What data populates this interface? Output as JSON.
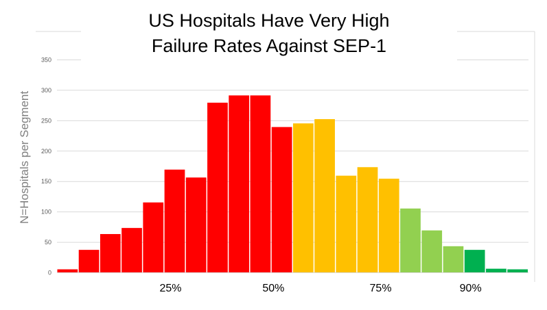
{
  "chart_data": {
    "type": "bar",
    "title": "US Hospitals Have Very High Failure Rates Against SEP-1",
    "title_lines": [
      "US Hospitals Have Very High",
      "Failure Rates Against SEP-1"
    ],
    "ylabel": "N=Hospitals per Segment",
    "xlabel": "",
    "ylim": [
      0,
      350
    ],
    "yticks": [
      0,
      50,
      100,
      150,
      200,
      250,
      300,
      350
    ],
    "grid": true,
    "values": [
      5,
      37,
      63,
      73,
      115,
      169,
      156,
      279,
      291,
      291,
      239,
      245,
      252,
      159,
      173,
      154,
      105,
      69,
      43,
      37,
      6,
      5
    ],
    "bar_colors": [
      "#FF0000",
      "#FF0000",
      "#FF0000",
      "#FF0000",
      "#FF0000",
      "#FF0000",
      "#FF0000",
      "#FF0000",
      "#FF0000",
      "#FF0000",
      "#FF0000",
      "#FFC000",
      "#FFC000",
      "#FFC000",
      "#FFC000",
      "#FFC000",
      "#92D050",
      "#92D050",
      "#92D050",
      "#00B050",
      "#00B050",
      "#00B050"
    ],
    "x_labels": [
      {
        "label": "25%",
        "bar_index": 5.3
      },
      {
        "label": "50%",
        "bar_index": 10.1
      },
      {
        "label": "75%",
        "bar_index": 15.1
      },
      {
        "label": "90%",
        "bar_index": 19.3
      }
    ]
  }
}
